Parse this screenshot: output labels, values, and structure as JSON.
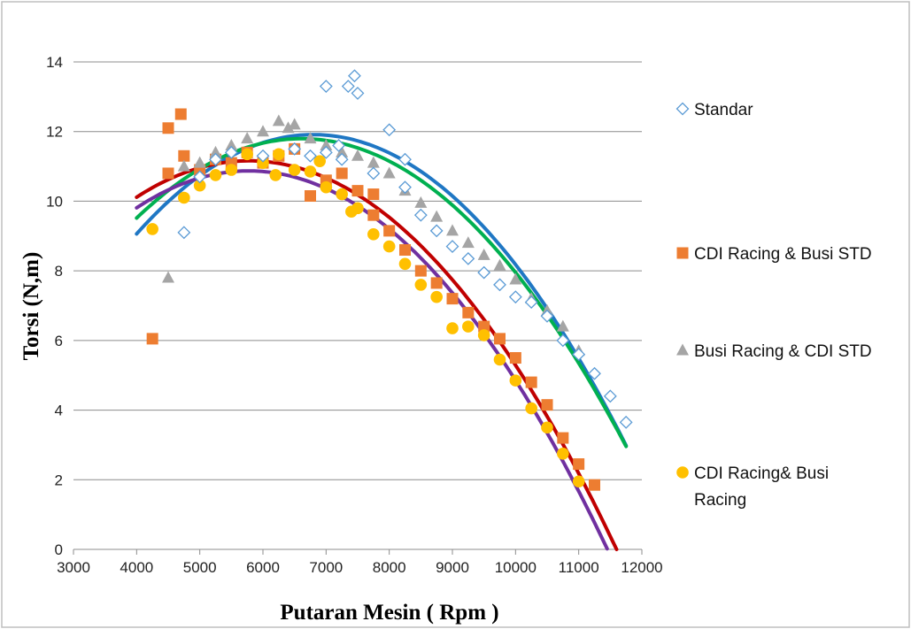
{
  "chart_data": {
    "type": "scatter",
    "xlabel": "Putaran Mesin ( Rpm )",
    "ylabel": "Torsi  (N,m)",
    "xlim": [
      3000,
      12000
    ],
    "ylim": [
      0,
      14
    ],
    "xticks": [
      3000,
      4000,
      5000,
      6000,
      7000,
      8000,
      9000,
      10000,
      11000,
      12000
    ],
    "yticks": [
      0,
      2,
      4,
      6,
      8,
      10,
      12,
      14
    ],
    "grid": "horizontal",
    "legend_position": "right",
    "series": [
      {
        "name": "Standar",
        "marker": "diamond-open",
        "color": "#5b9bd5",
        "trend_color": "#1f77c4",
        "points": [
          [
            4750,
            9.1
          ],
          [
            5000,
            10.7
          ],
          [
            5250,
            11.2
          ],
          [
            5500,
            11.4
          ],
          [
            6000,
            11.3
          ],
          [
            6500,
            11.5
          ],
          [
            6750,
            11.3
          ],
          [
            7000,
            13.3
          ],
          [
            7000,
            11.4
          ],
          [
            7200,
            11.6
          ],
          [
            7250,
            11.2
          ],
          [
            7350,
            13.3
          ],
          [
            7450,
            13.6
          ],
          [
            7500,
            13.1
          ],
          [
            7750,
            10.8
          ],
          [
            8000,
            12.05
          ],
          [
            8250,
            11.2
          ],
          [
            8250,
            10.4
          ],
          [
            8500,
            9.6
          ],
          [
            8750,
            9.15
          ],
          [
            9000,
            8.7
          ],
          [
            9250,
            8.35
          ],
          [
            9500,
            7.95
          ],
          [
            9750,
            7.6
          ],
          [
            10000,
            7.25
          ],
          [
            10250,
            7.1
          ],
          [
            10500,
            6.7
          ],
          [
            10750,
            6.0
          ],
          [
            11000,
            5.6
          ],
          [
            11250,
            5.05
          ],
          [
            11500,
            4.4
          ],
          [
            11750,
            3.65
          ]
        ]
      },
      {
        "name": "CDI Racing & Busi STD",
        "marker": "square",
        "color": "#ed7d31",
        "trend_color": "#c00000",
        "points": [
          [
            4250,
            6.05
          ],
          [
            4500,
            10.8
          ],
          [
            4500,
            12.1
          ],
          [
            4700,
            12.5
          ],
          [
            4750,
            11.3
          ],
          [
            5000,
            10.9
          ],
          [
            5250,
            11.2
          ],
          [
            5500,
            11.1
          ],
          [
            5750,
            11.4
          ],
          [
            6000,
            11.1
          ],
          [
            6250,
            11.3
          ],
          [
            6500,
            11.5
          ],
          [
            6750,
            10.15
          ],
          [
            7000,
            10.6
          ],
          [
            7250,
            10.8
          ],
          [
            7500,
            10.3
          ],
          [
            7750,
            10.2
          ],
          [
            7750,
            9.6
          ],
          [
            8000,
            9.15
          ],
          [
            8250,
            8.6
          ],
          [
            8500,
            8.0
          ],
          [
            8750,
            7.65
          ],
          [
            9000,
            7.2
          ],
          [
            9250,
            6.8
          ],
          [
            9500,
            6.4
          ],
          [
            9750,
            6.05
          ],
          [
            10000,
            5.5
          ],
          [
            10250,
            4.8
          ],
          [
            10500,
            4.15
          ],
          [
            10750,
            3.2
          ],
          [
            11000,
            2.45
          ],
          [
            11250,
            1.85
          ]
        ]
      },
      {
        "name": "Busi Racing & CDI STD",
        "marker": "triangle",
        "color": "#a5a5a5",
        "trend_color": "#00b050",
        "points": [
          [
            4500,
            7.8
          ],
          [
            4750,
            11.0
          ],
          [
            5000,
            11.1
          ],
          [
            5250,
            11.4
          ],
          [
            5500,
            11.6
          ],
          [
            5750,
            11.8
          ],
          [
            6000,
            12.0
          ],
          [
            6250,
            12.3
          ],
          [
            6400,
            12.1
          ],
          [
            6500,
            12.2
          ],
          [
            6750,
            11.8
          ],
          [
            7000,
            11.6
          ],
          [
            7250,
            11.4
          ],
          [
            7500,
            11.3
          ],
          [
            7750,
            11.1
          ],
          [
            8000,
            10.8
          ],
          [
            8250,
            10.3
          ],
          [
            8500,
            9.95
          ],
          [
            8750,
            9.55
          ],
          [
            9000,
            9.15
          ],
          [
            9250,
            8.8
          ],
          [
            9500,
            8.45
          ],
          [
            9750,
            8.15
          ],
          [
            10000,
            7.75
          ],
          [
            10250,
            7.2
          ],
          [
            10500,
            6.85
          ],
          [
            10750,
            6.4
          ],
          [
            11000,
            5.7
          ]
        ]
      },
      {
        "name": "CDI Racing&  Busi Racing",
        "marker": "circle",
        "color": "#ffc000",
        "trend_color": "#7030a0",
        "points": [
          [
            4250,
            9.2
          ],
          [
            4750,
            10.1
          ],
          [
            5000,
            10.45
          ],
          [
            5250,
            10.75
          ],
          [
            5500,
            10.9
          ],
          [
            5750,
            11.35
          ],
          [
            6000,
            11.1
          ],
          [
            6200,
            10.75
          ],
          [
            6250,
            11.35
          ],
          [
            6500,
            10.9
          ],
          [
            6750,
            10.85
          ],
          [
            6900,
            11.15
          ],
          [
            7000,
            10.4
          ],
          [
            7250,
            10.2
          ],
          [
            7400,
            9.7
          ],
          [
            7500,
            9.8
          ],
          [
            7750,
            9.05
          ],
          [
            8000,
            8.7
          ],
          [
            8250,
            8.2
          ],
          [
            8500,
            7.6
          ],
          [
            8750,
            7.25
          ],
          [
            9000,
            6.35
          ],
          [
            9250,
            6.4
          ],
          [
            9500,
            6.15
          ],
          [
            9750,
            5.45
          ],
          [
            10000,
            4.85
          ],
          [
            10250,
            4.05
          ],
          [
            10500,
            3.5
          ],
          [
            10750,
            2.75
          ],
          [
            11000,
            1.95
          ]
        ]
      }
    ],
    "trendlines": [
      {
        "series": "Standar",
        "type": "polynomial",
        "color": "#1f77c4",
        "x_range": [
          4000,
          11750
        ],
        "points": [
          [
            4000,
            9.1
          ],
          [
            6500,
            11.8
          ],
          [
            7000,
            11.9
          ],
          [
            9000,
            10.1
          ],
          [
            11000,
            5.8
          ],
          [
            11750,
            2.75
          ]
        ]
      },
      {
        "series": "CDI Racing & Busi STD",
        "type": "polynomial",
        "color": "#c00000",
        "x_range": [
          4000,
          11600
        ],
        "points": [
          [
            4000,
            10.1
          ],
          [
            5800,
            11.2
          ],
          [
            8000,
            9.5
          ],
          [
            10000,
            5.3
          ],
          [
            11600,
            0.0
          ]
        ]
      },
      {
        "series": "Busi Racing & CDI STD",
        "type": "polynomial",
        "color": "#00b050",
        "x_range": [
          4000,
          11750
        ],
        "points": [
          [
            4000,
            9.55
          ],
          [
            6700,
            11.7
          ],
          [
            9000,
            9.9
          ],
          [
            11000,
            5.55
          ],
          [
            11750,
            2.8
          ]
        ]
      },
      {
        "series": "CDI Racing&  Busi Racing",
        "type": "polynomial",
        "color": "#7030a0",
        "x_range": [
          4000,
          11450
        ],
        "points": [
          [
            4000,
            9.8
          ],
          [
            5700,
            10.9
          ],
          [
            8000,
            9.15
          ],
          [
            10000,
            4.9
          ],
          [
            11450,
            0.0
          ]
        ]
      }
    ]
  }
}
